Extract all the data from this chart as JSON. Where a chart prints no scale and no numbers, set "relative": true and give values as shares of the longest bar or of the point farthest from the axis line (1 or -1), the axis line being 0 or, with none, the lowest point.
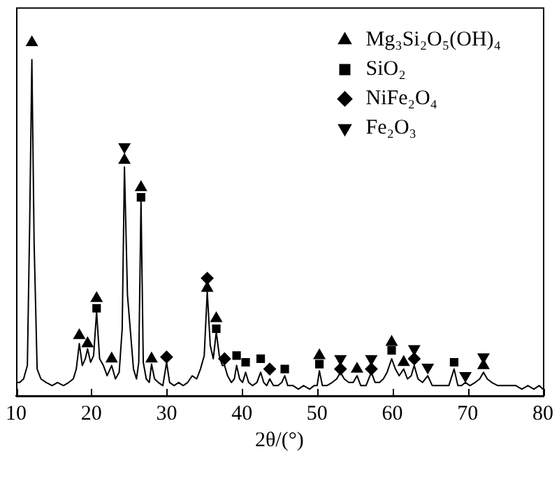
{
  "chart_data": {
    "type": "line",
    "xlabel": "2θ/(°)",
    "relative": true,
    "xlim": [
      10,
      80
    ],
    "xticks": [
      10,
      20,
      30,
      40,
      50,
      60,
      70,
      80
    ],
    "grid": false,
    "legend": "top right",
    "series": [
      {
        "color": "#000000",
        "marker": "none",
        "x": [
          10,
          10.5,
          11,
          11.5,
          11.8,
          12.1,
          12.4,
          12.8,
          13.3,
          14,
          14.8,
          15.5,
          16.3,
          17,
          17.6,
          18,
          18.4,
          18.8,
          19.2,
          19.5,
          19.9,
          20.3,
          20.7,
          21.1,
          21.6,
          22.1,
          22.7,
          23.2,
          23.7,
          24.1,
          24.4,
          24.8,
          25.2,
          25.6,
          26,
          26.3,
          26.6,
          26.9,
          27.3,
          27.7,
          28,
          28.4,
          28.9,
          29.5,
          30,
          30.4,
          31,
          31.6,
          32.2,
          32.8,
          33.4,
          34,
          34.5,
          35,
          35.4,
          35.8,
          36.2,
          36.6,
          37,
          37.4,
          37.7,
          38.1,
          38.6,
          39,
          39.3,
          39.7,
          40.1,
          40.5,
          40.9,
          41.4,
          42,
          42.5,
          42.9,
          43.3,
          43.7,
          44.2,
          44.8,
          45.3,
          45.7,
          46.1,
          46.8,
          47.5,
          48.2,
          49,
          49.6,
          50,
          50.3,
          50.7,
          51.3,
          52,
          52.6,
          53.1,
          53.6,
          54.2,
          54.8,
          55.3,
          55.8,
          56.5,
          57.2,
          57.7,
          58.3,
          58.8,
          59.3,
          59.9,
          60.4,
          60.9,
          61.5,
          62,
          62.5,
          62.9,
          63.4,
          64,
          64.7,
          65.3,
          66,
          66.8,
          67.5,
          68.2,
          68.7,
          69.2,
          69.7,
          70.3,
          71,
          71.6,
          72.1,
          72.6,
          73.2,
          74,
          74.8,
          75.6,
          76.4,
          77.2,
          78,
          78.8,
          79.5,
          80
        ],
        "values": [
          0.038,
          0.038,
          0.048,
          0.086,
          0.476,
          0.952,
          0.429,
          0.076,
          0.048,
          0.038,
          0.029,
          0.038,
          0.029,
          0.038,
          0.048,
          0.076,
          0.148,
          0.086,
          0.105,
          0.133,
          0.095,
          0.114,
          0.238,
          0.105,
          0.086,
          0.057,
          0.086,
          0.048,
          0.067,
          0.19,
          0.648,
          0.286,
          0.181,
          0.076,
          0.048,
          0.095,
          0.552,
          0.095,
          0.048,
          0.038,
          0.09,
          0.048,
          0.038,
          0.029,
          0.095,
          0.038,
          0.029,
          0.038,
          0.029,
          0.038,
          0.057,
          0.048,
          0.076,
          0.114,
          0.295,
          0.143,
          0.105,
          0.181,
          0.114,
          0.086,
          0.086,
          0.057,
          0.038,
          0.048,
          0.086,
          0.048,
          0.038,
          0.067,
          0.038,
          0.029,
          0.038,
          0.067,
          0.038,
          0.029,
          0.048,
          0.029,
          0.029,
          0.038,
          0.057,
          0.029,
          0.029,
          0.019,
          0.029,
          0.019,
          0.029,
          0.029,
          0.071,
          0.029,
          0.029,
          0.038,
          0.048,
          0.067,
          0.048,
          0.038,
          0.038,
          0.057,
          0.029,
          0.029,
          0.067,
          0.038,
          0.038,
          0.048,
          0.067,
          0.105,
          0.076,
          0.057,
          0.076,
          0.048,
          0.057,
          0.086,
          0.048,
          0.038,
          0.057,
          0.029,
          0.029,
          0.029,
          0.029,
          0.076,
          0.029,
          0.029,
          0.038,
          0.029,
          0.038,
          0.048,
          0.067,
          0.048,
          0.038,
          0.029,
          0.029,
          0.029,
          0.029,
          0.019,
          0.029,
          0.019,
          0.029,
          0.019
        ]
      },
      {
        "type": "scatter",
        "name": "Mg₃Si₂O₅(OH)₄",
        "color": "#000000",
        "marker": "triangle",
        "x": [
          12.1,
          18.4,
          19.5,
          20.7,
          22.7,
          24.4,
          26.6,
          28.0,
          35.4,
          36.6,
          50.3,
          55.3,
          59.9,
          61.5,
          72.1
        ],
        "values": [
          1,
          0.171,
          0.148,
          0.276,
          0.105,
          0.667,
          0.59,
          0.105,
          0.305,
          0.219,
          0.114,
          0.076,
          0.152,
          0.095,
          0.086
        ]
      },
      {
        "type": "scatter",
        "name": "SiO₂",
        "color": "#000000",
        "marker": "square",
        "x": [
          20.7,
          26.6,
          36.6,
          39.3,
          40.5,
          42.5,
          45.7,
          50.3,
          59.9,
          68.2
        ],
        "values": [
          0.248,
          0.562,
          0.19,
          0.114,
          0.095,
          0.105,
          0.076,
          0.09,
          0.129,
          0.095
        ]
      },
      {
        "type": "scatter",
        "name": "NiFe₂O₄",
        "color": "#000000",
        "marker": "diamond",
        "x": [
          30.0,
          35.4,
          37.7,
          43.7,
          53.1,
          57.2,
          62.9
        ],
        "values": [
          0.11,
          0.333,
          0.105,
          0.076,
          0.076,
          0.076,
          0.105
        ]
      },
      {
        "type": "scatter",
        "name": "Fe₂O₃",
        "color": "#000000",
        "marker": "triangle_down",
        "x": [
          24.4,
          53.1,
          57.2,
          62.9,
          64.7,
          69.7,
          72.1
        ],
        "values": [
          0.705,
          0.105,
          0.105,
          0.133,
          0.081,
          0.057,
          0.11
        ]
      }
    ]
  }
}
